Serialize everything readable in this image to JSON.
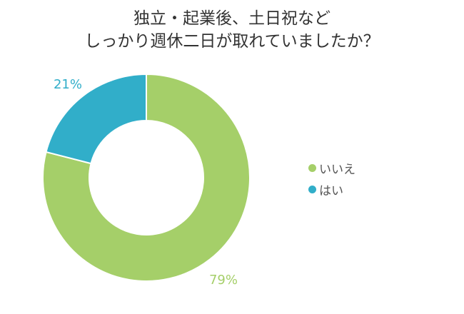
{
  "chart_data": {
    "type": "pie",
    "donut": true,
    "title_lines": [
      "独立・起業後、土日祝など",
      "しっかり週休二日が取れていましたか？"
    ],
    "slices": [
      {
        "label": "はい",
        "value": 21,
        "display": "21%",
        "color": "#31aec9"
      },
      {
        "label": "いいえ",
        "value": 79,
        "display": "79%",
        "color": "#a5cf69"
      }
    ],
    "legend": {
      "placement": "right",
      "items": [
        {
          "label": "いいえ",
          "color": "#a5cf69"
        },
        {
          "label": "はい",
          "color": "#31aec9"
        }
      ]
    }
  }
}
